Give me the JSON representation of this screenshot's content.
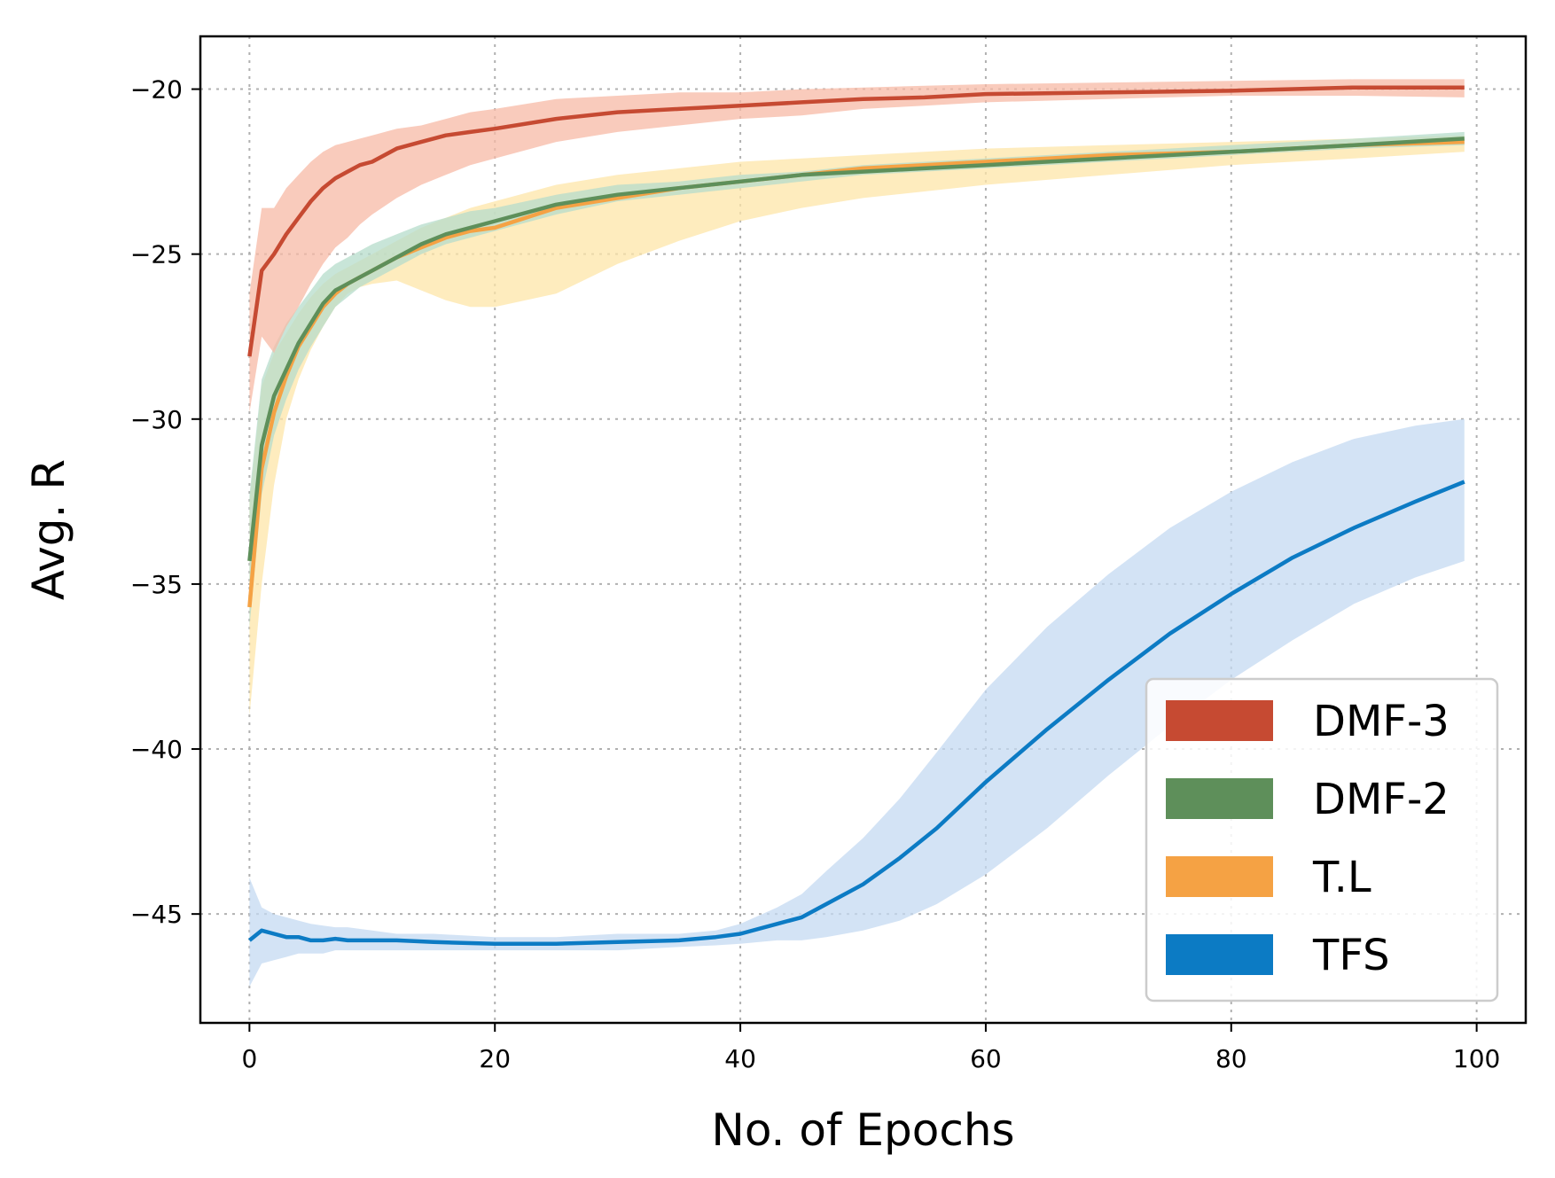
{
  "chart_data": {
    "type": "line",
    "title": "",
    "xlabel": "No. of Epochs",
    "ylabel": "Avg. R",
    "xlim": [
      -4,
      104
    ],
    "ylim": [
      -48.3,
      -18.4
    ],
    "xticks": [
      0,
      20,
      40,
      60,
      80,
      100
    ],
    "xtick_labels": [
      "0",
      "20",
      "40",
      "60",
      "80",
      "100"
    ],
    "yticks": [
      -20,
      -25,
      -30,
      -35,
      -40,
      -45
    ],
    "ytick_labels": [
      "−20",
      "−25",
      "−30",
      "−35",
      "−40",
      "−45"
    ],
    "grid": true,
    "legend_position": "lower-right",
    "series": [
      {
        "name": "DMF-3",
        "color": "#c64a32",
        "band_color": "#f7b9a5",
        "x": [
          0,
          1,
          2,
          3,
          4,
          5,
          6,
          7,
          8,
          9,
          10,
          12,
          14,
          16,
          18,
          20,
          25,
          30,
          35,
          40,
          45,
          50,
          55,
          60,
          70,
          80,
          90,
          99
        ],
        "mean": [
          -28.1,
          -25.5,
          -25.0,
          -24.4,
          -23.9,
          -23.4,
          -23.0,
          -22.7,
          -22.5,
          -22.3,
          -22.2,
          -21.8,
          -21.6,
          -21.4,
          -21.3,
          -21.2,
          -20.9,
          -20.7,
          -20.6,
          -20.5,
          -20.4,
          -20.3,
          -20.25,
          -20.15,
          -20.1,
          -20.05,
          -19.95,
          -19.95
        ],
        "lower": [
          -29.8,
          -27.5,
          -28.0,
          -27.2,
          -26.6,
          -25.9,
          -25.3,
          -24.8,
          -24.5,
          -24.1,
          -23.8,
          -23.3,
          -22.9,
          -22.6,
          -22.3,
          -22.1,
          -21.6,
          -21.3,
          -21.1,
          -20.9,
          -20.8,
          -20.6,
          -20.5,
          -20.4,
          -20.3,
          -20.2,
          -20.2,
          -20.25
        ],
        "upper": [
          -26.2,
          -23.6,
          -23.6,
          -23.0,
          -22.6,
          -22.2,
          -21.9,
          -21.7,
          -21.6,
          -21.5,
          -21.4,
          -21.2,
          -21.1,
          -20.9,
          -20.7,
          -20.6,
          -20.3,
          -20.2,
          -20.1,
          -20.1,
          -20.0,
          -19.95,
          -19.9,
          -19.85,
          -19.8,
          -19.75,
          -19.7,
          -19.7
        ]
      },
      {
        "name": "DMF-2",
        "color": "#5e8f5a",
        "band_color": "#b6dccb",
        "x": [
          0,
          1,
          2,
          3,
          4,
          5,
          6,
          7,
          8,
          9,
          10,
          12,
          14,
          16,
          18,
          20,
          25,
          30,
          35,
          40,
          45,
          50,
          55,
          60,
          70,
          80,
          90,
          99
        ],
        "mean": [
          -34.3,
          -30.8,
          -29.3,
          -28.5,
          -27.7,
          -27.1,
          -26.5,
          -26.1,
          -25.9,
          -25.7,
          -25.5,
          -25.1,
          -24.7,
          -24.4,
          -24.2,
          -24.0,
          -23.5,
          -23.2,
          -23.0,
          -22.8,
          -22.6,
          -22.5,
          -22.4,
          -22.3,
          -22.1,
          -21.9,
          -21.7,
          -21.5
        ],
        "lower": [
          -36.3,
          -32.3,
          -30.5,
          -29.4,
          -28.5,
          -27.8,
          -27.2,
          -26.6,
          -26.3,
          -26.0,
          -25.8,
          -25.4,
          -25.0,
          -24.7,
          -24.5,
          -24.3,
          -23.8,
          -23.4,
          -23.2,
          -23.0,
          -22.8,
          -22.6,
          -22.5,
          -22.4,
          -22.2,
          -22.0,
          -21.8,
          -21.7
        ],
        "upper": [
          -32.3,
          -28.8,
          -27.8,
          -27.1,
          -26.6,
          -26.1,
          -25.6,
          -25.3,
          -25.1,
          -24.9,
          -24.7,
          -24.4,
          -24.1,
          -23.9,
          -23.7,
          -23.6,
          -23.2,
          -22.9,
          -22.8,
          -22.6,
          -22.5,
          -22.3,
          -22.2,
          -22.1,
          -21.9,
          -21.7,
          -21.5,
          -21.3
        ]
      },
      {
        "name": "T.L",
        "color": "#f5a244",
        "band_color": "#fde6a8",
        "x": [
          0,
          1,
          2,
          3,
          4,
          5,
          6,
          7,
          8,
          9,
          10,
          12,
          14,
          16,
          18,
          20,
          25,
          30,
          35,
          40,
          45,
          50,
          55,
          60,
          70,
          80,
          90,
          99
        ],
        "mean": [
          -35.7,
          -31.5,
          -29.8,
          -28.7,
          -27.8,
          -27.2,
          -26.6,
          -26.2,
          -25.9,
          -25.7,
          -25.5,
          -25.1,
          -24.8,
          -24.5,
          -24.3,
          -24.2,
          -23.6,
          -23.3,
          -23.0,
          -22.8,
          -22.6,
          -22.4,
          -22.3,
          -22.2,
          -22.0,
          -21.9,
          -21.7,
          -21.6
        ],
        "lower": [
          -39.0,
          -35.0,
          -32.0,
          -30.0,
          -28.8,
          -27.9,
          -27.2,
          -26.6,
          -26.2,
          -26.0,
          -25.9,
          -25.8,
          -26.1,
          -26.4,
          -26.6,
          -26.6,
          -26.2,
          -25.3,
          -24.6,
          -24.0,
          -23.6,
          -23.3,
          -23.1,
          -22.9,
          -22.6,
          -22.3,
          -22.1,
          -21.9
        ],
        "upper": [
          -32.5,
          -29.0,
          -28.0,
          -27.4,
          -26.8,
          -26.3,
          -25.9,
          -25.6,
          -25.4,
          -25.2,
          -25.0,
          -24.6,
          -24.2,
          -23.9,
          -23.6,
          -23.4,
          -22.9,
          -22.6,
          -22.4,
          -22.2,
          -22.1,
          -22.0,
          -21.9,
          -21.8,
          -21.7,
          -21.6,
          -21.5,
          -21.4
        ]
      },
      {
        "name": "TFS",
        "color": "#0c7bc4",
        "band_color": "#c4daf1",
        "x": [
          0,
          1,
          2,
          3,
          4,
          5,
          6,
          7,
          8,
          10,
          12,
          15,
          20,
          25,
          30,
          35,
          38,
          40,
          43,
          45,
          47,
          50,
          53,
          56,
          60,
          65,
          70,
          75,
          80,
          85,
          90,
          95,
          99
        ],
        "mean": [
          -45.8,
          -45.5,
          -45.6,
          -45.7,
          -45.7,
          -45.8,
          -45.8,
          -45.75,
          -45.8,
          -45.8,
          -45.8,
          -45.85,
          -45.9,
          -45.9,
          -45.85,
          -45.8,
          -45.7,
          -45.6,
          -45.3,
          -45.1,
          -44.7,
          -44.1,
          -43.3,
          -42.4,
          -41.0,
          -39.4,
          -37.9,
          -36.5,
          -35.3,
          -34.2,
          -33.3,
          -32.5,
          -31.9
        ],
        "lower": [
          -47.2,
          -46.5,
          -46.4,
          -46.3,
          -46.2,
          -46.2,
          -46.2,
          -46.1,
          -46.1,
          -46.1,
          -46.1,
          -46.1,
          -46.1,
          -46.1,
          -46.1,
          -46.0,
          -45.95,
          -45.9,
          -45.8,
          -45.8,
          -45.7,
          -45.5,
          -45.2,
          -44.7,
          -43.8,
          -42.4,
          -40.8,
          -39.3,
          -37.9,
          -36.7,
          -35.6,
          -34.8,
          -34.3
        ],
        "upper": [
          -43.9,
          -44.8,
          -45.0,
          -45.1,
          -45.2,
          -45.3,
          -45.35,
          -45.4,
          -45.4,
          -45.5,
          -45.6,
          -45.6,
          -45.7,
          -45.7,
          -45.6,
          -45.6,
          -45.5,
          -45.3,
          -44.8,
          -44.4,
          -43.7,
          -42.7,
          -41.5,
          -40.1,
          -38.2,
          -36.3,
          -34.7,
          -33.3,
          -32.2,
          -31.3,
          -30.6,
          -30.2,
          -30.0
        ]
      }
    ]
  }
}
